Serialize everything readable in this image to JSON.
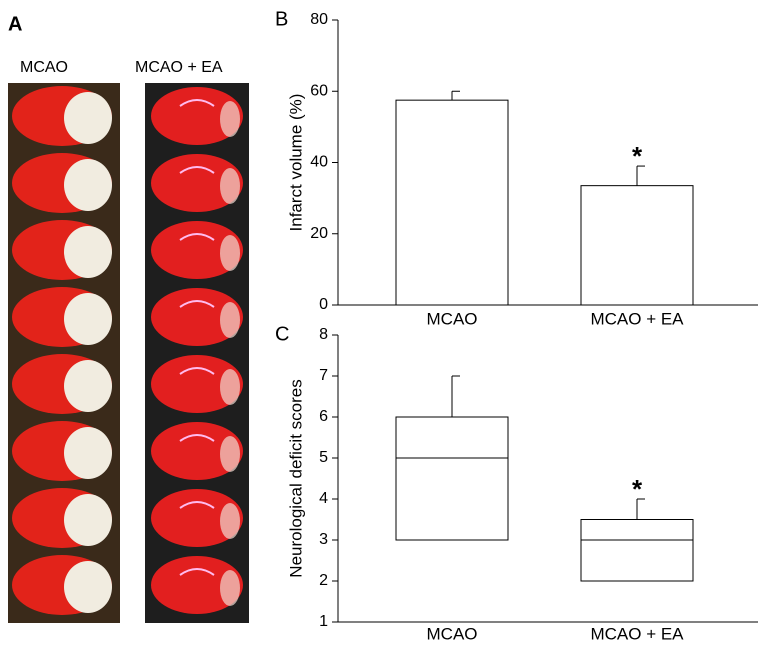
{
  "panel_a": {
    "label": "A",
    "columns": [
      "MCAO",
      "MCAO + EA"
    ]
  },
  "chart_data": [
    {
      "type": "bar",
      "label": "B",
      "ylabel": "Infarct volume (%)",
      "categories": [
        "MCAO",
        "MCAO + EA"
      ],
      "values": [
        57.5,
        33.5
      ],
      "errors": [
        2.5,
        5.5
      ],
      "significance": [
        null,
        "*"
      ],
      "ylim": [
        0,
        80
      ],
      "yticks": [
        0,
        20,
        40,
        60,
        80
      ]
    },
    {
      "type": "box",
      "label": "C",
      "ylabel": "Neurological deficit scores",
      "categories": [
        "MCAO",
        "MCAO + EA"
      ],
      "q1": [
        3,
        2
      ],
      "median": [
        5,
        3
      ],
      "q3": [
        6,
        3.5
      ],
      "whisker_high": [
        7,
        4
      ],
      "significance": [
        null,
        "*"
      ],
      "ylim": [
        1,
        8
      ],
      "yticks": [
        1,
        2,
        3,
        4,
        5,
        6,
        7,
        8
      ]
    }
  ]
}
